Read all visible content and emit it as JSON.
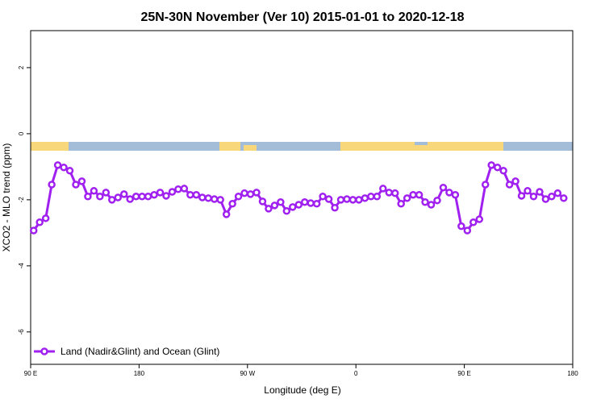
{
  "chart_data": {
    "type": "line",
    "title": "25N-30N November (Ver 10)   2015-01-01 to 2020-12-18",
    "xlabel": "Longitude (deg E)",
    "ylabel": "XCO2 - MLO trend (ppm)",
    "xlim": [
      90,
      540
    ],
    "ylim": [
      -6.98,
      3.12
    ],
    "xticks": [
      {
        "value": 90,
        "label": "90 E"
      },
      180,
      {
        "value": 270,
        "label": "90 W"
      },
      {
        "value": 360,
        "label": "0"
      },
      {
        "value": 450,
        "label": "90 E"
      },
      {
        "value": 540,
        "label": "180"
      }
    ],
    "yticks": [
      -6,
      -4,
      -2,
      0,
      2
    ],
    "legend": "bottom-left",
    "series": [
      {
        "name": "Land (Nadir&Glint) and Ocean (Glint)",
        "color": "#a020f0",
        "x": [
          92.5,
          97.5,
          102.5,
          107.5,
          112.5,
          117.5,
          122.5,
          127.5,
          132.5,
          137.5,
          142.5,
          147.5,
          152.5,
          157.5,
          162.5,
          167.5,
          172.5,
          177.5,
          182.5,
          187.5,
          192.5,
          197.5,
          202.5,
          207.5,
          212.5,
          217.5,
          222.5,
          227.5,
          232.5,
          237.5,
          242.5,
          247.5,
          252.5,
          257.5,
          262.5,
          267.5,
          272.5,
          277.5,
          282.5,
          287.5,
          292.5,
          297.5,
          302.5,
          307.5,
          312.5,
          317.5,
          322.5,
          327.5,
          332.5,
          337.5,
          342.5,
          347.5,
          352.5,
          357.5,
          362.5,
          367.5,
          372.5,
          377.5,
          382.5,
          387.5,
          392.5,
          397.5,
          402.5,
          407.5,
          412.5,
          417.5,
          422.5,
          427.5,
          432.5,
          437.5,
          442.5,
          447.5,
          452.5,
          457.5,
          462.5,
          467.5,
          472.5,
          477.5,
          482.5,
          487.5,
          492.5,
          497.5,
          502.5,
          507.5,
          512.5,
          517.5,
          522.5,
          527.5,
          532.5
        ],
        "values": [
          -2.93,
          -2.68,
          -2.56,
          -1.54,
          -0.95,
          -1.02,
          -1.12,
          -1.54,
          -1.44,
          -1.9,
          -1.73,
          -1.9,
          -1.78,
          -2.0,
          -1.93,
          -1.83,
          -1.98,
          -1.9,
          -1.9,
          -1.9,
          -1.85,
          -1.78,
          -1.88,
          -1.76,
          -1.68,
          -1.66,
          -1.85,
          -1.85,
          -1.93,
          -1.95,
          -1.98,
          -2.0,
          -2.44,
          -2.12,
          -1.9,
          -1.8,
          -1.83,
          -1.78,
          -2.05,
          -2.27,
          -2.17,
          -2.07,
          -2.34,
          -2.22,
          -2.15,
          -2.07,
          -2.1,
          -2.12,
          -1.9,
          -1.98,
          -2.24,
          -2.0,
          -1.98,
          -2.0,
          -2.0,
          -1.95,
          -1.9,
          -1.9,
          -1.66,
          -1.78,
          -1.8,
          -2.12,
          -1.95,
          -1.85,
          -1.85,
          -2.07,
          -2.15,
          -2.02,
          -1.63,
          -1.78,
          -1.85,
          -2.8,
          -2.93,
          -2.68,
          -2.59,
          -1.54,
          -0.95,
          -1.02,
          -1.12,
          -1.54,
          -1.44,
          -1.88,
          -1.73,
          -1.9,
          -1.76,
          -1.98,
          -1.9,
          -1.8,
          -1.95
        ]
      }
    ]
  }
}
